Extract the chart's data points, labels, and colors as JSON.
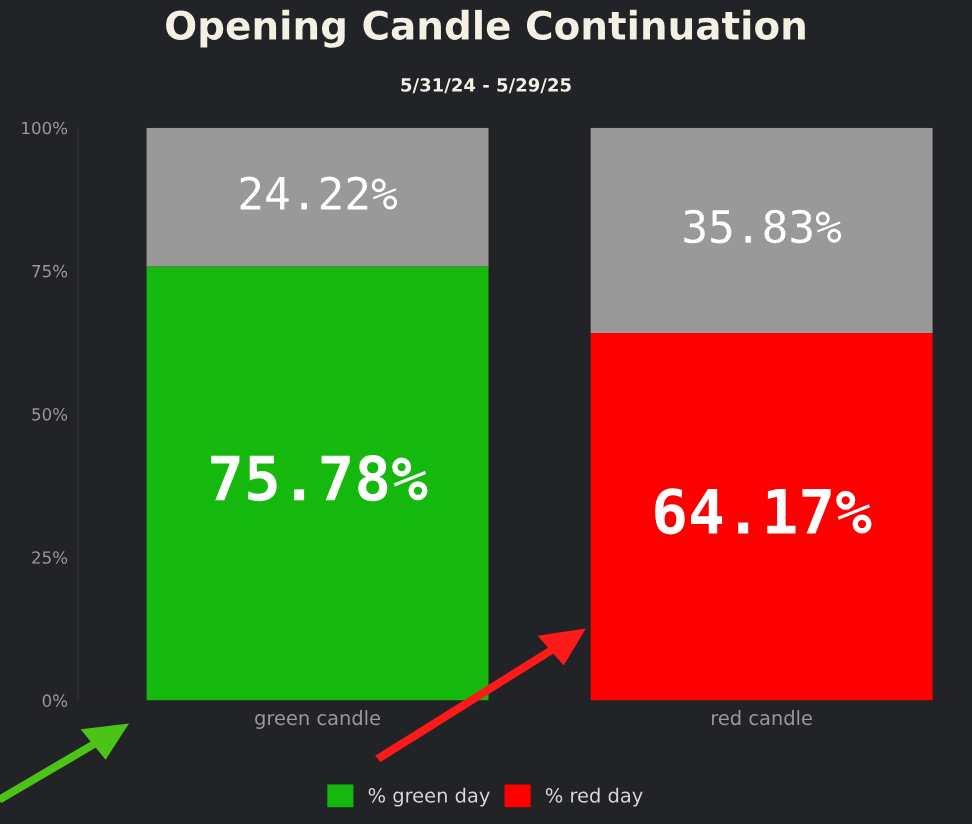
{
  "chart_data": {
    "type": "bar",
    "title": "Opening Candle Continuation",
    "subtitle": "5/31/24 - 5/29/25",
    "categories": [
      "green candle",
      "red candle"
    ],
    "stacked": true,
    "series": [
      {
        "name": "% green day",
        "color": "#15b80c",
        "values": [
          75.78,
          null
        ],
        "value_labels": [
          "75.78%",
          null
        ]
      },
      {
        "name": "% red day",
        "color": "#ff0000",
        "values": [
          null,
          64.17
        ],
        "value_labels": [
          null,
          "64.17%"
        ]
      },
      {
        "color": "#999999",
        "values": [
          24.22,
          35.83
        ],
        "value_labels": [
          "24.22%",
          "35.83%"
        ]
      }
    ],
    "ylim": [
      0,
      100
    ],
    "yticks": [
      {
        "value": 0,
        "label": "0%"
      },
      {
        "value": 25,
        "label": "25%"
      },
      {
        "value": 50,
        "label": "50%"
      },
      {
        "value": 75,
        "label": "75%"
      },
      {
        "value": 100,
        "label": "100%"
      }
    ],
    "grid": false,
    "legend": "bottom"
  }
}
